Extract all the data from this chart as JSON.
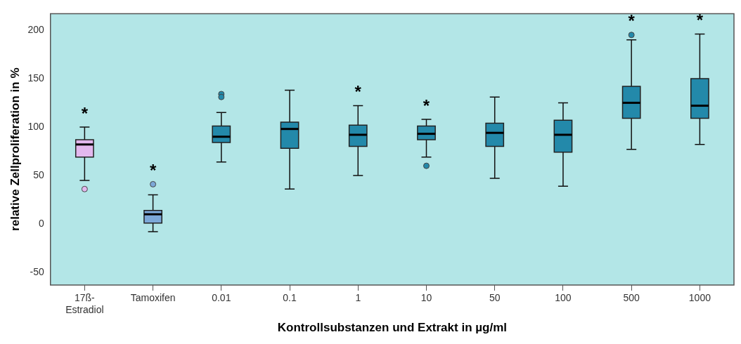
{
  "chart_data": {
    "type": "box",
    "xlabel": "Kontrollsubstanzen und Extrakt in µg/ml",
    "ylabel": "relative Zellproliferation in %",
    "categories": [
      "17ß-Estradiol",
      "Tamoxifen",
      "0.01",
      "0.1",
      "1",
      "10",
      "50",
      "100",
      "500",
      "1000"
    ],
    "colors": [
      "#e3b8ee",
      "#7ca8d8",
      "#2389aa",
      "#2389aa",
      "#2389aa",
      "#2389aa",
      "#2389aa",
      "#2389aa",
      "#2389aa",
      "#2389aa"
    ],
    "boxes": [
      {
        "low": 45,
        "q1": 69,
        "median": 82,
        "q3": 87,
        "high": 100,
        "outliers": [
          36
        ]
      },
      {
        "low": -8,
        "q1": 1,
        "median": 10,
        "q3": 14,
        "high": 30,
        "outliers": [
          41
        ]
      },
      {
        "low": 64,
        "q1": 84,
        "median": 90,
        "q3": 101,
        "high": 115,
        "outliers": [
          134,
          131
        ]
      },
      {
        "low": 36,
        "q1": 78,
        "median": 98,
        "q3": 105,
        "high": 138
      },
      {
        "low": 50,
        "q1": 80,
        "median": 92,
        "q3": 102,
        "high": 122
      },
      {
        "low": 69,
        "q1": 87,
        "median": 93,
        "q3": 101,
        "high": 108,
        "outliers": [
          60
        ]
      },
      {
        "low": 47,
        "q1": 80,
        "median": 94,
        "q3": 104,
        "high": 131
      },
      {
        "low": 39,
        "q1": 74,
        "median": 92,
        "q3": 107,
        "high": 125
      },
      {
        "low": 77,
        "q1": 109,
        "median": 125,
        "q3": 142,
        "high": 190,
        "outliers": [
          195
        ]
      },
      {
        "low": 82,
        "q1": 109,
        "median": 122,
        "q3": 150,
        "high": 196
      }
    ],
    "ylim": [
      -63,
      217
    ],
    "yticks": [
      -50,
      0,
      50,
      100,
      150,
      200
    ],
    "annotations": [
      {
        "text": "*",
        "x": "17ß-Estradiol",
        "y": 100
      },
      {
        "text": "*",
        "x": "Tamoxifen",
        "y": 30
      },
      {
        "text": "*",
        "x": "1",
        "y": 122
      },
      {
        "text": "*",
        "x": "10",
        "y": 108
      },
      {
        "text": "*",
        "x": "500",
        "y": 190
      },
      {
        "text": "*",
        "x": "1000",
        "y": 196
      }
    ]
  }
}
